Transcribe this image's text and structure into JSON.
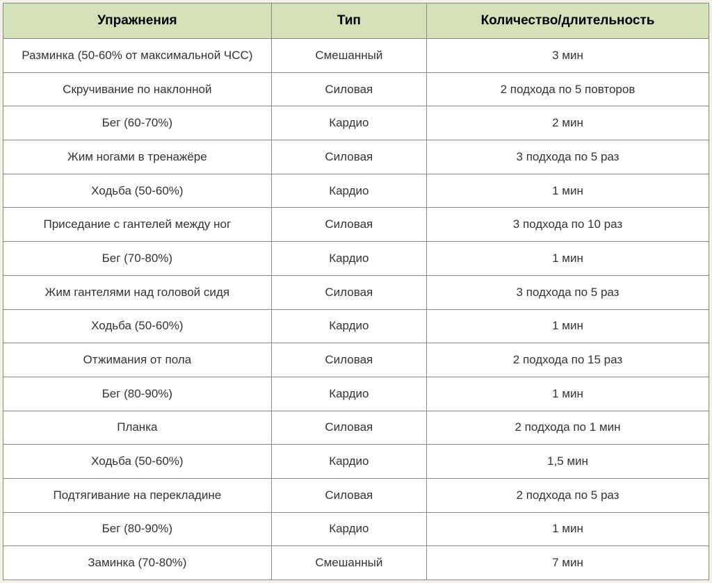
{
  "table": {
    "type": "table",
    "header_bg_color": "#d4e0b8",
    "border_color": "#888888",
    "cell_bg_color": "#ffffff",
    "page_bg_color": "#f5f1e8",
    "font_family": "Verdana",
    "header_font_size": 19,
    "header_font_weight": "bold",
    "cell_font_size": 17,
    "text_color": "#333333",
    "header_text_color": "#000000",
    "column_widths": [
      "38%",
      "22%",
      "40%"
    ],
    "columns": [
      "Упражнения",
      "Тип",
      "Количество/длительность"
    ],
    "rows": [
      [
        "Разминка (50-60% от максимальной ЧСС)",
        "Смешанный",
        "3 мин"
      ],
      [
        "Скручивание по наклонной",
        "Силовая",
        "2 подхода по 5 повторов"
      ],
      [
        "Бег (60-70%)",
        "Кардио",
        "2 мин"
      ],
      [
        "Жим ногами в тренажёре",
        "Силовая",
        "3 подхода по 5 раз"
      ],
      [
        "Ходьба (50-60%)",
        "Кардио",
        "1 мин"
      ],
      [
        "Приседание с гантелей между ног",
        "Силовая",
        "3 подхода по 10 раз"
      ],
      [
        "Бег (70-80%)",
        "Кардио",
        "1 мин"
      ],
      [
        "Жим гантелями над головой сидя",
        "Силовая",
        "3 подхода по 5 раз"
      ],
      [
        "Ходьба (50-60%)",
        "Кардио",
        "1 мин"
      ],
      [
        "Отжимания от пола",
        "Силовая",
        "2 подхода по 15 раз"
      ],
      [
        "Бег (80-90%)",
        "Кардио",
        "1 мин"
      ],
      [
        "Планка",
        "Силовая",
        "2 подхода по 1 мин"
      ],
      [
        "Ходьба (50-60%)",
        "Кардио",
        "1,5 мин"
      ],
      [
        "Подтягивание на перекладине",
        "Силовая",
        "2 подхода по 5 раз"
      ],
      [
        "Бег (80-90%)",
        "Кардио",
        "1 мин"
      ],
      [
        "Заминка (70-80%)",
        "Смешанный",
        "7 мин"
      ]
    ]
  }
}
